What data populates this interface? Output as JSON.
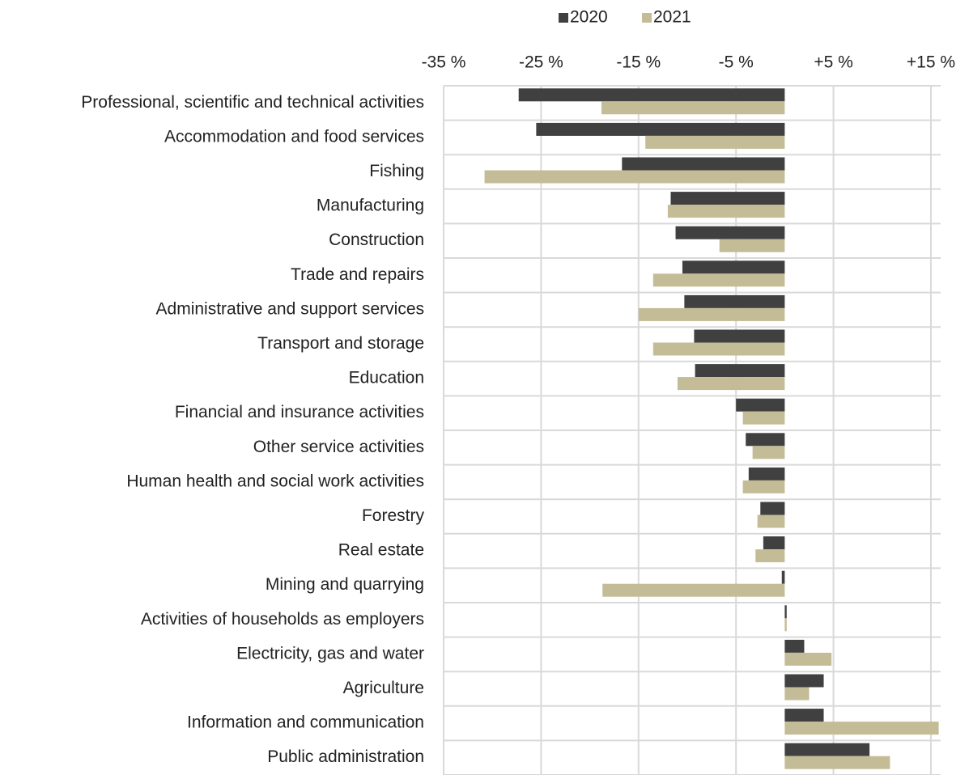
{
  "chart_data": {
    "type": "hbar",
    "categories": [
      "Professional, scientific and technical activities",
      "Accommodation and food services",
      "Fishing",
      "Manufacturing",
      "Construction",
      "Trade and repairs",
      "Administrative and support services",
      "Transport and storage",
      "Education",
      "Financial and insurance activities",
      "Other service activities",
      "Human health and social work activities",
      "Forestry",
      "Real estate",
      "Mining and quarrying",
      "Activities of households as employers",
      "Electricity, gas and water",
      "Agriculture",
      "Information and communication",
      "Public administration"
    ],
    "series": [
      {
        "name": "2020",
        "color": "#404040",
        "values": [
          -27.3,
          -25.5,
          -16.7,
          -11.7,
          -11.2,
          -10.5,
          -10.3,
          -9.3,
          -9.2,
          -5.0,
          -4.0,
          -3.7,
          -2.5,
          -2.2,
          -0.3,
          0.2,
          2.0,
          4.0,
          4.0,
          8.7
        ]
      },
      {
        "name": "2021",
        "color": "#c4bc96",
        "values": [
          -18.8,
          -14.3,
          -30.8,
          -12.0,
          -6.7,
          -13.5,
          -15.0,
          -13.5,
          -11.0,
          -4.3,
          -3.3,
          -4.3,
          -2.8,
          -3.0,
          -18.7,
          0.2,
          4.8,
          2.5,
          15.8,
          10.8
        ]
      }
    ],
    "xlim": [
      -35,
      16
    ],
    "xticks": [
      {
        "value": -35,
        "label": "-35 %"
      },
      {
        "value": -25,
        "label": "-25 %"
      },
      {
        "value": -15,
        "label": "-15 %"
      },
      {
        "value": -5,
        "label": "-5 %"
      },
      {
        "value": 5,
        "label": "+5 %"
      },
      {
        "value": 15,
        "label": "+15 %"
      }
    ],
    "grid": true,
    "legend": "top"
  }
}
